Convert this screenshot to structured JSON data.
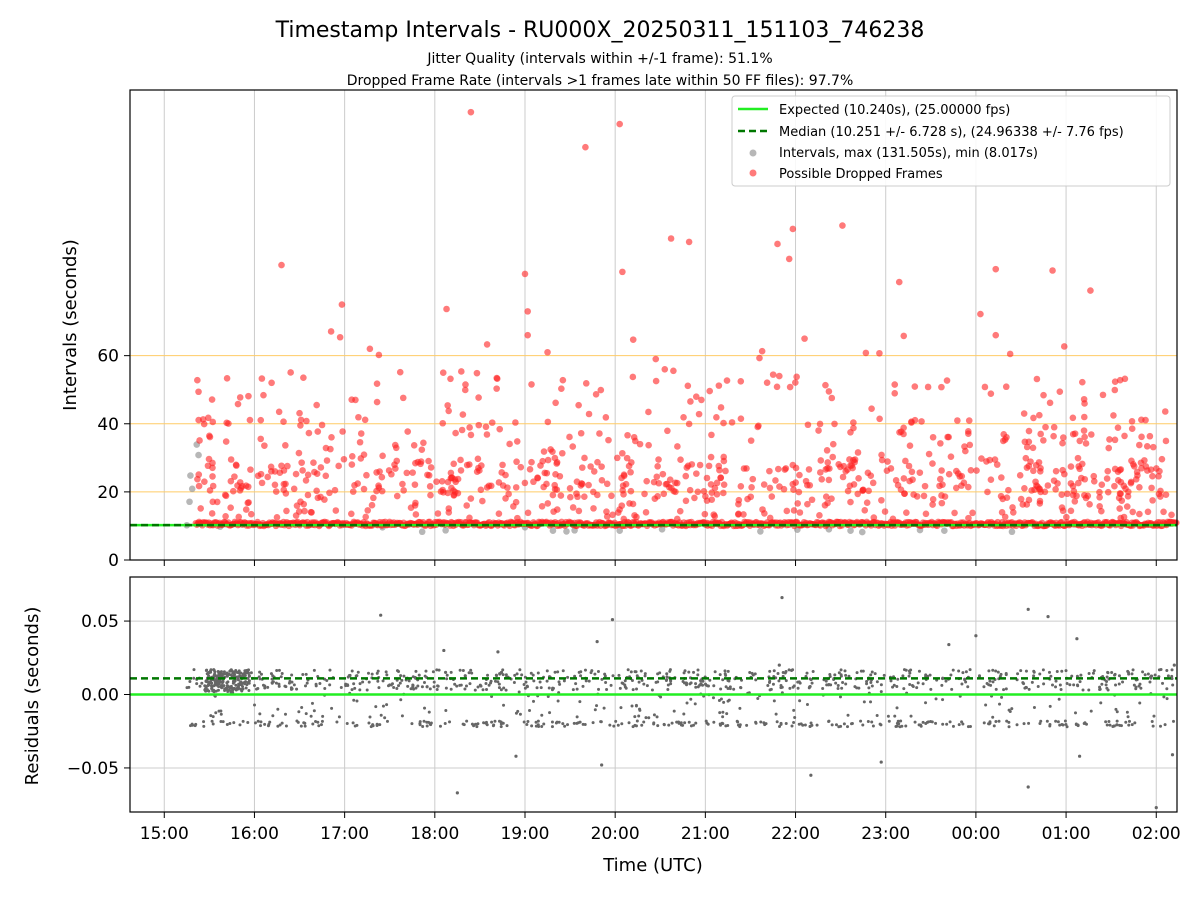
{
  "title": "Timestamp Intervals - RU000X_20250311_151103_746238",
  "subtitle_1": "Jitter Quality (intervals within +/-1 frame): 51.1%",
  "subtitle_2": "Dropped Frame Rate (intervals >1 frames late within 50 FF files): 97.7%",
  "colors": {
    "expected": "#22ee22",
    "median": "#007700",
    "intervals": "#999999",
    "dropped": "#ff2222",
    "hline": "#ffcc66",
    "grid": "#cccccc",
    "residual": "#666666"
  },
  "chart_data": [
    {
      "type": "scatter",
      "panel": "top",
      "ylabel": "Intervals (seconds)",
      "xlabel": "",
      "x_unit": "time (UTC)",
      "xlim": [
        "15:00 - 0.38h",
        "02:00 + 0.22h"
      ],
      "xlim_hours": [
        14.62,
        26.23
      ],
      "ylim": [
        0,
        138
      ],
      "y_ticks": [
        0,
        20,
        40,
        60
      ],
      "x_ticks": [
        "15:00",
        "16:00",
        "17:00",
        "18:00",
        "19:00",
        "20:00",
        "21:00",
        "22:00",
        "23:00",
        "00:00",
        "01:00",
        "02:00"
      ],
      "grid": "vertical",
      "horizontal_reference_lines": [
        20,
        40,
        60
      ],
      "legend_position": "top-right",
      "legend": [
        "Expected (10.240s), (25.00000 fps)",
        "Median (10.251 +/- 6.728 s), (24.96338 +/- 7.76 fps)",
        "Intervals, max (131.505s), min (8.017s)",
        "Possible Dropped Frames"
      ],
      "expected_y": 10.24,
      "median_y": 10.251,
      "start_hour": 15.25,
      "end_hour": 26.23,
      "series": [
        {
          "name": "Expected (10.240s), (25.00000 fps)",
          "kind": "line",
          "y": 10.24
        },
        {
          "name": "Median (10.251 +/- 6.728 s), (24.96338 +/- 7.76 fps)",
          "kind": "dashed-line",
          "y": 10.251
        },
        {
          "name": "Intervals, max (131.505s), min (8.017s)",
          "kind": "scatter",
          "points": [
            [
              15.25,
              10.2
            ],
            [
              15.28,
              17.1
            ],
            [
              15.29,
              24.8
            ],
            [
              15.31,
              20.9
            ],
            [
              15.36,
              33.9
            ],
            [
              15.38,
              30.8
            ],
            [
              17.86,
              8.3
            ],
            [
              18.12,
              8.7
            ],
            [
              19.0,
              9.6
            ],
            [
              19.31,
              8.6
            ],
            [
              19.46,
              8.4
            ],
            [
              19.55,
              8.7
            ],
            [
              20.05,
              8.6
            ],
            [
              20.52,
              9.0
            ],
            [
              21.61,
              8.4
            ],
            [
              22.02,
              8.9
            ],
            [
              22.37,
              9.0
            ],
            [
              22.61,
              8.6
            ],
            [
              22.74,
              8.2
            ],
            [
              23.38,
              8.8
            ],
            [
              23.65,
              8.6
            ],
            [
              24.4,
              8.3
            ],
            [
              15.62,
              9.8
            ],
            [
              17.42,
              9.6
            ]
          ]
        },
        {
          "name": "Possible Dropped Frames",
          "kind": "scatter",
          "dense_baseline": {
            "from_hour": 15.35,
            "to_hour": 26.23,
            "y_min": 10.0,
            "y_max": 11.2
          },
          "highlighted_points": [
            [
              18.4,
              131.5
            ],
            [
              20.05,
              128.0
            ],
            [
              19.67,
              121.2
            ],
            [
              16.3,
              86.6
            ],
            [
              20.62,
              94.4
            ],
            [
              20.82,
              93.4
            ],
            [
              21.8,
              92.8
            ],
            [
              22.52,
              98.2
            ],
            [
              21.97,
              97.2
            ],
            [
              21.93,
              88.4
            ],
            [
              23.15,
              81.6
            ],
            [
              24.85,
              85.0
            ],
            [
              24.22,
              85.4
            ],
            [
              25.27,
              79.1
            ],
            [
              19.0,
              84.0
            ],
            [
              20.08,
              84.6
            ],
            [
              16.97,
              75.0
            ],
            [
              18.13,
              73.7
            ],
            [
              19.03,
              73.0
            ],
            [
              16.85,
              67.1
            ],
            [
              16.95,
              65.4
            ],
            [
              17.28,
              62.0
            ],
            [
              17.38,
              60.2
            ],
            [
              18.58,
              63.3
            ],
            [
              19.03,
              66.0
            ],
            [
              19.25,
              61.0
            ],
            [
              20.2,
              64.7
            ],
            [
              21.63,
              61.3
            ],
            [
              22.1,
              65.0
            ],
            [
              23.2,
              65.8
            ],
            [
              24.05,
              72.2
            ],
            [
              24.22,
              66.0
            ],
            [
              24.38,
              60.5
            ],
            [
              24.98,
              62.7
            ],
            [
              22.93,
              60.7
            ],
            [
              22.78,
              60.8
            ],
            [
              21.6,
              59.3
            ],
            [
              20.45,
              59.0
            ],
            [
              15.38,
              49.4
            ],
            [
              15.53,
              47.1
            ],
            [
              16.1,
              48.4
            ],
            [
              16.5,
              43.1
            ],
            [
              15.95,
              41.1
            ],
            [
              17.12,
              47.0
            ],
            [
              17.65,
              47.6
            ],
            [
              18.34,
              51.5
            ],
            [
              19.42,
              52.8
            ],
            [
              20.55,
              56.0
            ],
            [
              21.15,
              51.2
            ],
            [
              21.82,
              54.0
            ],
            [
              22.37,
              49.5
            ],
            [
              23.1,
              51.5
            ],
            [
              23.47,
              50.8
            ],
            [
              24.1,
              50.8
            ],
            [
              24.75,
              48.4
            ],
            [
              25.2,
              47.2
            ],
            [
              25.6,
              52.8
            ],
            [
              26.1,
              43.6
            ]
          ]
        }
      ]
    },
    {
      "type": "scatter",
      "panel": "bottom",
      "ylabel": "Residuals (seconds)",
      "xlabel": "Time (UTC)",
      "xlim_hours": [
        14.62,
        26.23
      ],
      "ylim": [
        -0.08,
        0.08
      ],
      "y_ticks": [
        "0.05",
        "0.00",
        "−0.05"
      ],
      "y_tick_values": [
        0.05,
        0.0,
        -0.05
      ],
      "x_ticks": [
        "15:00",
        "16:00",
        "17:00",
        "18:00",
        "19:00",
        "20:00",
        "21:00",
        "22:00",
        "23:00",
        "00:00",
        "01:00",
        "02:00"
      ],
      "grid": "both",
      "series": [
        {
          "name": "",
          "kind": "line",
          "y": 0.0
        },
        {
          "name": "",
          "kind": "dashed-line",
          "y": 0.011
        },
        {
          "name": "",
          "kind": "scatter",
          "upper_band": [
            0.003,
            0.017
          ],
          "lower_band": [
            -0.022,
            -0.018
          ],
          "outliers": [
            [
              17.4,
              0.054
            ],
            [
              18.25,
              -0.067
            ],
            [
              18.1,
              0.03
            ],
            [
              18.7,
              0.029
            ],
            [
              18.9,
              -0.042
            ],
            [
              19.8,
              0.036
            ],
            [
              19.85,
              -0.048
            ],
            [
              19.97,
              0.051
            ],
            [
              21.85,
              0.066
            ],
            [
              21.82,
              0.02
            ],
            [
              22.17,
              -0.055
            ],
            [
              22.95,
              -0.046
            ],
            [
              23.7,
              0.034
            ],
            [
              24.0,
              0.04
            ],
            [
              24.58,
              0.058
            ],
            [
              24.58,
              -0.063
            ],
            [
              24.8,
              0.053
            ],
            [
              25.12,
              0.038
            ],
            [
              25.15,
              -0.042
            ],
            [
              26.0,
              -0.077
            ],
            [
              26.18,
              -0.041
            ],
            [
              26.2,
              0.02
            ]
          ]
        }
      ]
    }
  ]
}
